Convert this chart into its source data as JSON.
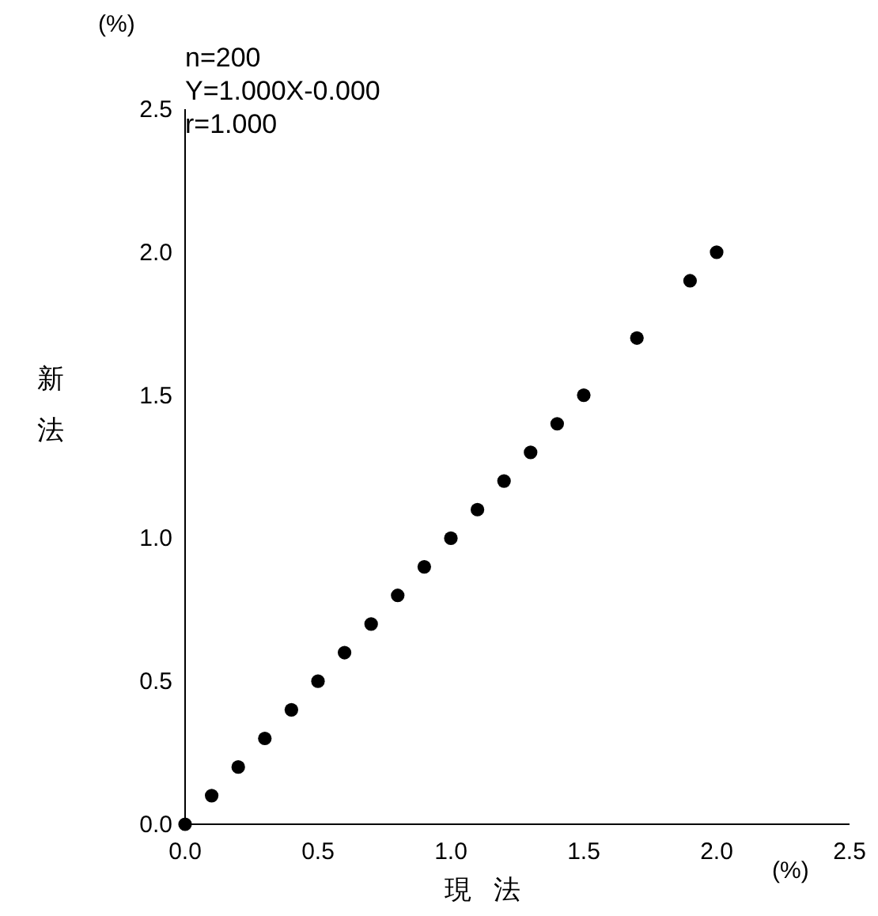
{
  "chart_data": {
    "type": "scatter",
    "xlabel": "現法",
    "ylabel": "新法",
    "x": [
      0.0,
      0.1,
      0.2,
      0.3,
      0.4,
      0.5,
      0.6,
      0.7,
      0.8,
      0.9,
      1.0,
      1.1,
      1.2,
      1.3,
      1.4,
      1.5,
      1.7,
      1.9,
      2.0
    ],
    "values": [
      0.0,
      0.1,
      0.2,
      0.3,
      0.4,
      0.5,
      0.6,
      0.7,
      0.8,
      0.9,
      1.0,
      1.1,
      1.2,
      1.3,
      1.4,
      1.5,
      1.7,
      1.9,
      2.0
    ],
    "color": "#000000",
    "marker": "circle",
    "xlim": [
      0,
      2.5
    ],
    "ylim": [
      0,
      2.5
    ],
    "xticks": [
      {
        "value": 0,
        "label": "0.0"
      },
      {
        "value": 0.5,
        "label": "0.5"
      },
      {
        "value": 1,
        "label": "1.0"
      },
      {
        "value": 1.5,
        "label": "1.5"
      },
      {
        "value": 2,
        "label": "2.0"
      },
      {
        "value": 2.5,
        "label": "2.5"
      }
    ],
    "yticks": [
      {
        "value": 0,
        "label": "0.0"
      },
      {
        "value": 0.5,
        "label": "0.5"
      },
      {
        "value": 1,
        "label": "1.0"
      },
      {
        "value": 1.5,
        "label": "1.5"
      },
      {
        "value": 2,
        "label": "2.0"
      },
      {
        "value": 2.5,
        "label": "2.5"
      }
    ],
    "annotations": [
      "n=200",
      "Y=1.000X-0.000",
      "r=1.000",
      "(%)",
      "(%)"
    ]
  }
}
